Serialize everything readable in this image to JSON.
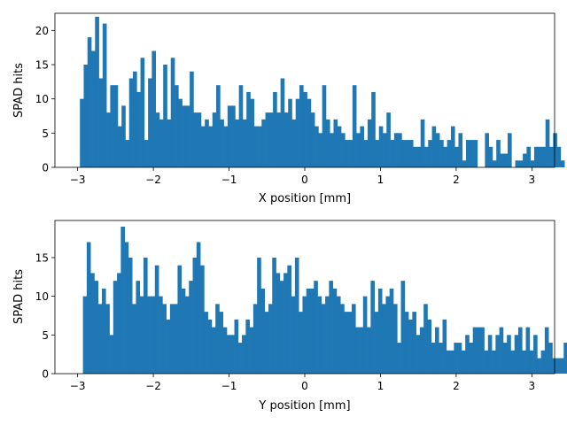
{
  "chart_data": [
    {
      "type": "bar",
      "subtype": "histogram",
      "xlabel": "X position [mm]",
      "ylabel": "SPAD hits",
      "xlim": [
        -3.3,
        3.3
      ],
      "ylim": [
        0,
        22.5
      ],
      "xticks": [
        -3,
        -2,
        -1,
        0,
        1,
        2,
        3
      ],
      "yticks": [
        0,
        5,
        10,
        15,
        20
      ],
      "grid": false,
      "color": "#1f77b4",
      "bin_width": 0.05,
      "bin_start": -2.97,
      "values": [
        10,
        15,
        19,
        17,
        22,
        13,
        21,
        8,
        12,
        12,
        6,
        9,
        4,
        13,
        14,
        11,
        16,
        4,
        13,
        17,
        8,
        7,
        15,
        7,
        16,
        12,
        10,
        9,
        9,
        14,
        8,
        8,
        6,
        7,
        6,
        8,
        12,
        7,
        6,
        9,
        9,
        7,
        12,
        7,
        11,
        10,
        6,
        6,
        7,
        8,
        8,
        11,
        8,
        13,
        8,
        10,
        7,
        10,
        12,
        11,
        10,
        8,
        6,
        5,
        12,
        7,
        5,
        7,
        6,
        5,
        4,
        4,
        12,
        5,
        6,
        4,
        7,
        11,
        4,
        6,
        5,
        8,
        4,
        5,
        5,
        4,
        4,
        4,
        3,
        3,
        7,
        3,
        4,
        6,
        5,
        4,
        3,
        4,
        6,
        3,
        5,
        1,
        4,
        4,
        4,
        0,
        0,
        5,
        3,
        1,
        4,
        2,
        2,
        5,
        0,
        1,
        1,
        2,
        3,
        1,
        3,
        3,
        3,
        7,
        3,
        5,
        3,
        1,
        0,
        0,
        0,
        0,
        0,
        0,
        0,
        0,
        0,
        0,
        0,
        0,
        0,
        0,
        0,
        0,
        0,
        0,
        0,
        0,
        0,
        0,
        0,
        0,
        0,
        0
      ]
    },
    {
      "type": "bar",
      "subtype": "histogram",
      "xlabel": "Y position [mm]",
      "ylabel": "SPAD hits",
      "xlim": [
        -3.3,
        3.3
      ],
      "ylim": [
        0,
        19.8
      ],
      "xticks": [
        -3,
        -2,
        -1,
        0,
        1,
        2,
        3
      ],
      "yticks": [
        0,
        5,
        10,
        15
      ],
      "grid": false,
      "color": "#1f77b4",
      "bin_width": 0.05,
      "bin_start": -2.93,
      "values": [
        10,
        17,
        13,
        12,
        9,
        11,
        9,
        5,
        12,
        13,
        19,
        17,
        15,
        9,
        12,
        10,
        15,
        10,
        10,
        14,
        10,
        9,
        7,
        9,
        9,
        14,
        11,
        10,
        12,
        15,
        17,
        14,
        8,
        7,
        6,
        9,
        8,
        6,
        5,
        5,
        7,
        4,
        5,
        7,
        6,
        9,
        15,
        11,
        8,
        9,
        15,
        13,
        12,
        13,
        14,
        10,
        15,
        8,
        10,
        11,
        11,
        12,
        10,
        9,
        10,
        12,
        11,
        10,
        9,
        8,
        8,
        9,
        6,
        6,
        10,
        6,
        12,
        8,
        11,
        9,
        10,
        11,
        9,
        4,
        12,
        8,
        7,
        8,
        5,
        6,
        9,
        7,
        4,
        6,
        4,
        7,
        3,
        3,
        4,
        4,
        3,
        5,
        4,
        6,
        6,
        6,
        3,
        5,
        3,
        5,
        6,
        4,
        5,
        3,
        5,
        6,
        3,
        6,
        3,
        5,
        2,
        3,
        6,
        4,
        2,
        2,
        2,
        4,
        0,
        0,
        0,
        0,
        0,
        0,
        0,
        0,
        0,
        0,
        0,
        0,
        0,
        0,
        0,
        0,
        0,
        0,
        0,
        0,
        0,
        0,
        0,
        0,
        0,
        0,
        0,
        0,
        0,
        0,
        0,
        0,
        0
      ]
    }
  ]
}
